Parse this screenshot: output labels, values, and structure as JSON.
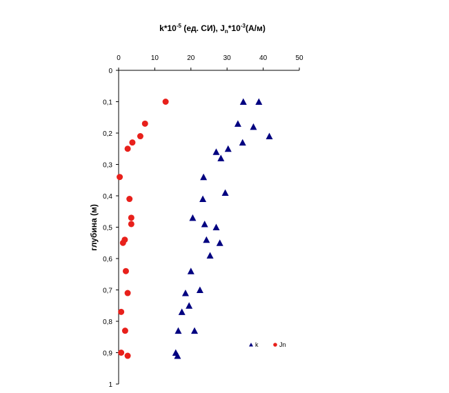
{
  "chart_data": {
    "type": "scatter",
    "title": "k*10-5 (ед. СИ), Jn*10-3(А/м)",
    "title_parts": {
      "t1": "k*10",
      "sup1": "-5",
      "t2": " (ед. СИ), J",
      "sub": "n",
      "t3": "*10",
      "sup2": "-3",
      "t4": "(А/м)"
    },
    "xlabel": "",
    "ylabel": "глубина (м)",
    "x_axis_position": "top",
    "y_axis_inverted": true,
    "xlim": [
      0,
      50
    ],
    "ylim": [
      0,
      1
    ],
    "x_ticks": [
      "0",
      "10",
      "20",
      "30",
      "40",
      "50"
    ],
    "y_ticks": [
      "0",
      "0,1",
      "0,2",
      "0,3",
      "0,4",
      "0,5",
      "0,6",
      "0,7",
      "0,8",
      "0,9",
      "1"
    ],
    "grid": false,
    "legend_position": "bottom-right",
    "series": [
      {
        "name": "k",
        "marker": "triangle",
        "color": "#000080",
        "points": [
          [
            34.5,
            0.1
          ],
          [
            38.8,
            0.1
          ],
          [
            33.0,
            0.17
          ],
          [
            37.3,
            0.18
          ],
          [
            41.7,
            0.21
          ],
          [
            34.3,
            0.23
          ],
          [
            30.3,
            0.25
          ],
          [
            27.0,
            0.26
          ],
          [
            28.3,
            0.28
          ],
          [
            23.5,
            0.34
          ],
          [
            29.5,
            0.39
          ],
          [
            23.3,
            0.41
          ],
          [
            20.5,
            0.47
          ],
          [
            23.8,
            0.49
          ],
          [
            27.0,
            0.5
          ],
          [
            24.3,
            0.54
          ],
          [
            28.0,
            0.55
          ],
          [
            25.3,
            0.59
          ],
          [
            20.0,
            0.64
          ],
          [
            22.5,
            0.7
          ],
          [
            18.5,
            0.71
          ],
          [
            19.5,
            0.75
          ],
          [
            17.5,
            0.77
          ],
          [
            16.5,
            0.83
          ],
          [
            21.0,
            0.83
          ],
          [
            15.8,
            0.9
          ],
          [
            16.3,
            0.91
          ]
        ]
      },
      {
        "name": "Jn",
        "marker": "circle",
        "color": "#e8201b",
        "points": [
          [
            13.0,
            0.1
          ],
          [
            7.3,
            0.17
          ],
          [
            6.0,
            0.21
          ],
          [
            3.8,
            0.23
          ],
          [
            2.5,
            0.25
          ],
          [
            0.3,
            0.34
          ],
          [
            3.0,
            0.41
          ],
          [
            3.5,
            0.47
          ],
          [
            3.5,
            0.49
          ],
          [
            1.7,
            0.54
          ],
          [
            1.2,
            0.55
          ],
          [
            2.0,
            0.64
          ],
          [
            2.5,
            0.71
          ],
          [
            0.7,
            0.77
          ],
          [
            1.8,
            0.83
          ],
          [
            0.7,
            0.9
          ],
          [
            2.5,
            0.91
          ]
        ]
      }
    ]
  }
}
